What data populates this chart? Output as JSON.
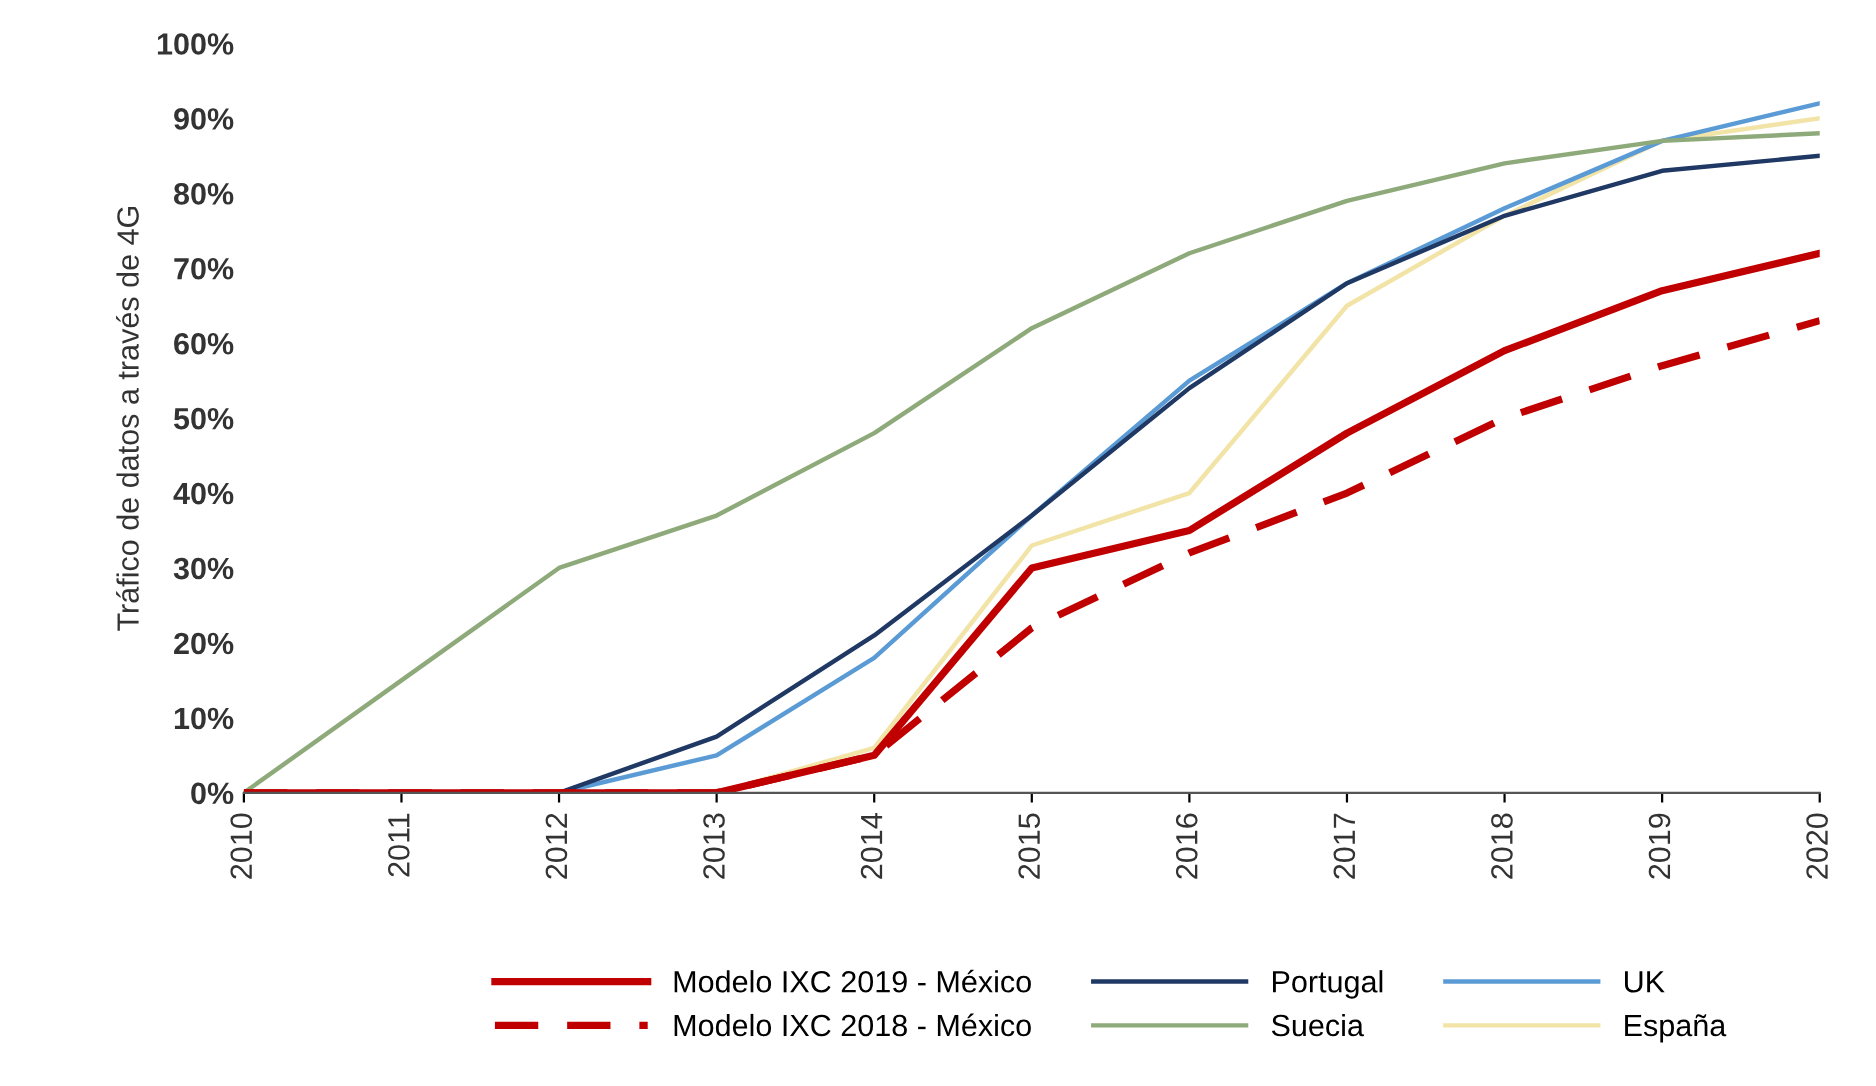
{
  "chart_data": {
    "type": "line",
    "ylabel": "Tráfico de datos a través de 4G",
    "x": [
      2010,
      2011,
      2012,
      2013,
      2014,
      2015,
      2016,
      2017,
      2018,
      2019,
      2020
    ],
    "xlim": [
      2010,
      2020
    ],
    "xticks": [
      2010,
      2011,
      2012,
      2013,
      2014,
      2015,
      2016,
      2017,
      2018,
      2019,
      2020
    ],
    "ylim": [
      0,
      100
    ],
    "yticks": [
      {
        "value": 0,
        "label": "0%"
      },
      {
        "value": 10,
        "label": "10%"
      },
      {
        "value": 20,
        "label": "20%"
      },
      {
        "value": 30,
        "label": "30%"
      },
      {
        "value": 40,
        "label": "40%"
      },
      {
        "value": 50,
        "label": "50%"
      },
      {
        "value": 60,
        "label": "60%"
      },
      {
        "value": 70,
        "label": "70%"
      },
      {
        "value": 80,
        "label": "80%"
      },
      {
        "value": 90,
        "label": "90%"
      },
      {
        "value": 100,
        "label": "100%"
      }
    ],
    "grid": false,
    "legend": "bottom",
    "marker": "none",
    "series": [
      {
        "name": "Modelo IXC 2019 - México",
        "color": "#c00000",
        "line_style": "solid",
        "values": [
          0,
          0,
          0,
          0,
          5,
          30,
          35,
          48,
          59,
          67,
          72
        ]
      },
      {
        "name": "Modelo IXC 2018 - México",
        "color": "#c00000",
        "line_style": "dashed",
        "values": [
          0,
          0,
          0,
          0,
          5,
          22,
          32,
          40,
          50,
          57,
          63
        ]
      },
      {
        "name": "Portugal",
        "color": "#1f3864",
        "line_style": "solid",
        "values": [
          0,
          0,
          0,
          7.5,
          21,
          37,
          54,
          68,
          77,
          83,
          85
        ]
      },
      {
        "name": "Suecia",
        "color": "#8faa7a",
        "line_style": "solid",
        "values": [
          0,
          15,
          30,
          37,
          48,
          62,
          72,
          79,
          84,
          87,
          88
        ]
      },
      {
        "name": "UK",
        "color": "#5b9bd5",
        "line_style": "solid",
        "values": [
          0,
          0,
          0,
          5,
          18,
          37,
          55,
          68,
          78,
          87,
          92
        ]
      },
      {
        "name": "España",
        "color": "#f2e3a6",
        "line_style": "solid",
        "values": [
          0,
          0,
          0,
          0,
          6,
          33,
          40,
          65,
          77,
          87,
          90
        ]
      }
    ]
  }
}
